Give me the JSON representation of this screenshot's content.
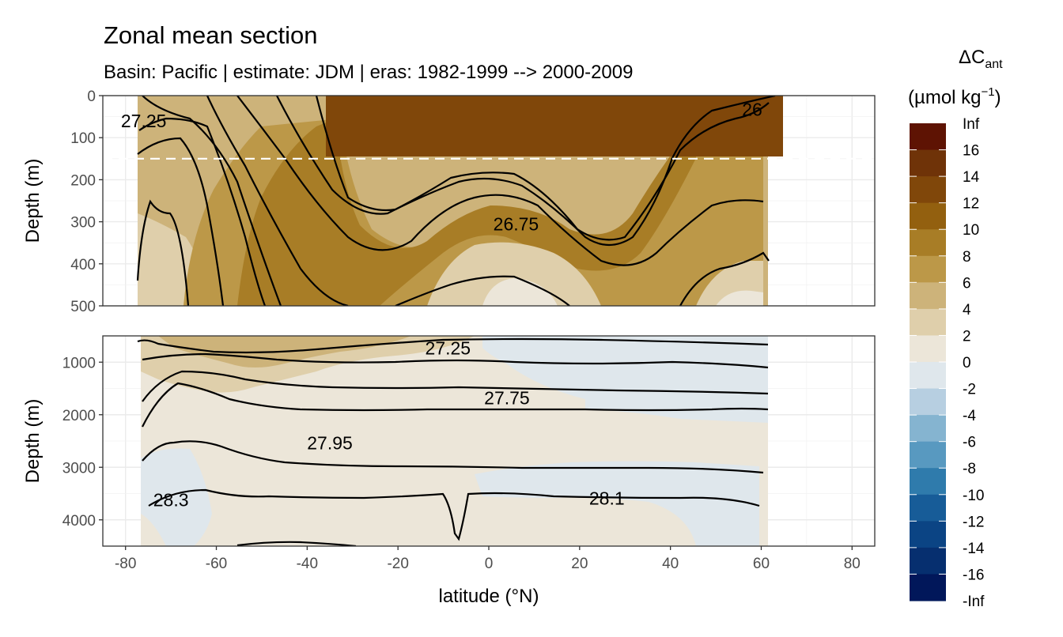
{
  "chart_data": {
    "type": "contour",
    "title": "Zonal mean section",
    "subtitle": "Basin: Pacific | estimate: JDM  | eras: 1982-1999 --> 2000-2009",
    "xlabel": "latitude (°N)",
    "ylabel": "Depth (m)",
    "xlim": [
      -85,
      85
    ],
    "x_ticks": [
      "-80",
      "-60",
      "-40",
      "-20",
      "0",
      "20",
      "40",
      "60",
      "80"
    ],
    "x_tick_values": [
      -80,
      -60,
      -40,
      -20,
      0,
      20,
      40,
      60,
      80
    ],
    "reference_line_depth": 150,
    "panels": [
      {
        "name": "upper",
        "ylim": [
          0,
          500
        ],
        "y_ticks": [
          "0",
          "100",
          "200",
          "300",
          "400",
          "500"
        ],
        "y_tick_values": [
          0,
          100,
          200,
          300,
          400,
          500
        ],
        "contour_labels": [
          {
            "text": "27.25",
            "lat": -76,
            "depth": 60
          },
          {
            "text": "26",
            "lat": 58,
            "depth": 33
          },
          {
            "text": "26.75",
            "lat": 6,
            "depth": 305
          }
        ]
      },
      {
        "name": "lower",
        "ylim": [
          500,
          4500
        ],
        "y_ticks": [
          "1000",
          "2000",
          "3000",
          "4000"
        ],
        "y_tick_values": [
          1000,
          2000,
          3000,
          4000
        ],
        "contour_labels": [
          {
            "text": "27.25",
            "lat": -9,
            "depth": 730
          },
          {
            "text": "27.75",
            "lat": 4,
            "depth": 1680
          },
          {
            "text": "27.95",
            "lat": -35,
            "depth": 2540
          },
          {
            "text": "28.3",
            "lat": -70,
            "depth": 3620
          },
          {
            "text": "28.1",
            "lat": 26,
            "depth": 3590
          }
        ]
      }
    ],
    "legend": {
      "title_main": "ΔC",
      "title_sub": "ant",
      "unit_main": "(µmol kg",
      "unit_sup": "−1",
      "unit_end": ")",
      "placement": "right",
      "labels": [
        "Inf",
        "16",
        "14",
        "12",
        "10",
        "8",
        "6",
        "4",
        "2",
        "0",
        "-2",
        "-4",
        "-6",
        "-8",
        "-10",
        "-12",
        "-14",
        "-16",
        "-Inf"
      ],
      "colors": [
        "#5e1303",
        "#6f3308",
        "#80470a",
        "#93600f",
        "#a87d26",
        "#bc9848",
        "#cdb37a",
        "#dfcfab",
        "#ece6d9",
        "#dfe7ec",
        "#b7cfe1",
        "#85b4d0",
        "#5899c0",
        "#2f7bac",
        "#175c98",
        "#0b4484",
        "#062f6f",
        "#01175a"
      ]
    },
    "fill_colors": {
      "deep_brown": "#80470a",
      "brown": "#a87d26",
      "mid": "#bc9848",
      "light": "#cdb37a",
      "pale": "#dfcfab",
      "cream": "#ece6d9",
      "blue": "#dfe7ec"
    }
  }
}
